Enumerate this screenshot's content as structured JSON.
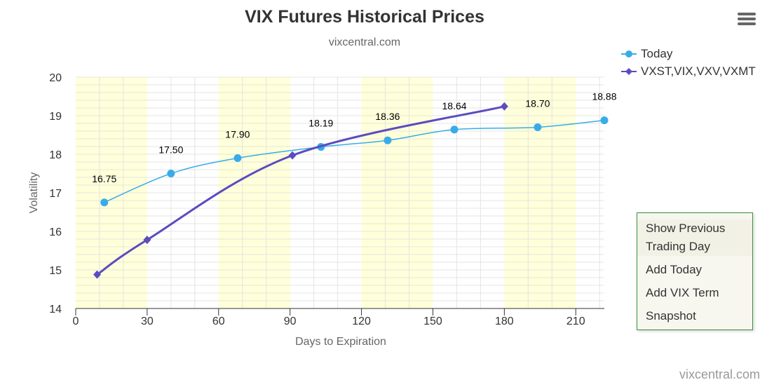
{
  "header": {
    "title": "VIX Futures Historical Prices",
    "subtitle": "vixcentral.com",
    "menu_icon": "hamburger-menu-icon"
  },
  "legend": {
    "items": [
      {
        "label": "Today",
        "color": "#38ace8",
        "symbol": "circle"
      },
      {
        "label": "VXST,VIX,VXV,VXMT",
        "color": "#5b4cbf",
        "symbol": "diamond"
      }
    ]
  },
  "context_menu": {
    "items": [
      "Show Previous Trading Day",
      "Add Today",
      "Add VIX Term",
      "Snapshot"
    ]
  },
  "credits": "vixcentral.com",
  "chart_data": {
    "type": "line",
    "xlabel": "Days to Expiration",
    "ylabel": "Volatility",
    "xlim": [
      0,
      222
    ],
    "ylim": [
      14,
      20
    ],
    "xticks": [
      0,
      30,
      60,
      90,
      120,
      150,
      180,
      210
    ],
    "yticks": [
      14,
      15,
      16,
      17,
      18,
      19,
      20
    ],
    "band_color": "#ffffd9",
    "bands": [
      [
        0,
        30
      ],
      [
        60,
        90
      ],
      [
        120,
        150
      ],
      [
        180,
        210
      ]
    ],
    "grid": true,
    "legend_position": "top-right",
    "series": [
      {
        "name": "Today",
        "color": "#38ace8",
        "marker": "circle",
        "points": [
          {
            "x": 12,
            "y": 16.75,
            "label": "16.75"
          },
          {
            "x": 40,
            "y": 17.5,
            "label": "17.50"
          },
          {
            "x": 68,
            "y": 17.9,
            "label": "17.90"
          },
          {
            "x": 103,
            "y": 18.19,
            "label": "18.19"
          },
          {
            "x": 131,
            "y": 18.36,
            "label": "18.36"
          },
          {
            "x": 159,
            "y": 18.64,
            "label": "18.64"
          },
          {
            "x": 194,
            "y": 18.7,
            "label": "18.70"
          },
          {
            "x": 222,
            "y": 18.88,
            "label": "18.88"
          }
        ]
      },
      {
        "name": "VXST,VIX,VXV,VXMT",
        "color": "#5b4cbf",
        "marker": "diamond",
        "points": [
          {
            "x": 9,
            "y": 14.88
          },
          {
            "x": 30,
            "y": 15.78
          },
          {
            "x": 91,
            "y": 17.97
          },
          {
            "x": 180,
            "y": 19.24
          }
        ]
      }
    ]
  }
}
